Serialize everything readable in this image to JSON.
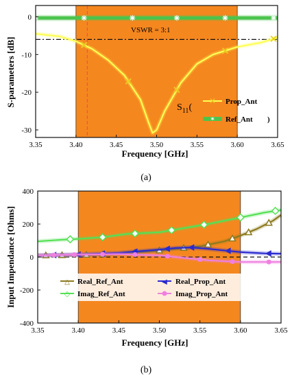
{
  "chart_data": [
    {
      "type": "line",
      "panel_label": "(a)",
      "xlabel": "Frequency [GHz]",
      "ylabel": "S-parameters [dB]",
      "xlim": [
        3.35,
        3.65
      ],
      "ylim": [
        -32,
        3
      ],
      "x_ticks": [
        "3.35",
        "3.40",
        "3.45",
        "3.50",
        "3.55",
        "3.60",
        "3.65"
      ],
      "y_ticks": [
        "0",
        "-10",
        "-20",
        "-30"
      ],
      "y_tick_values": [
        0,
        -10,
        -20,
        -30
      ],
      "shaded_band": {
        "x": [
          3.4,
          3.6
        ],
        "color": "#f5871f"
      },
      "reference_line": {
        "y": -6,
        "label": "VSWR = 3:1",
        "style": "dash-dot"
      },
      "marker_line": {
        "x": 3.414,
        "style": "dashed",
        "color": "#e05050"
      },
      "legend": {
        "prefix": "S",
        "prefix_sub": "11",
        "open": "(",
        "close": ")",
        "placement": "center-right"
      },
      "series": [
        {
          "name": "Prop_Ant",
          "color": "#ffff55",
          "marker": "x",
          "x": [
            3.35,
            3.38,
            3.4,
            3.42,
            3.44,
            3.46,
            3.48,
            3.49,
            3.495,
            3.5,
            3.51,
            3.53,
            3.55,
            3.57,
            3.6,
            3.63,
            3.65
          ],
          "y": [
            -4.5,
            -5.2,
            -6.5,
            -8.5,
            -11.5,
            -15.5,
            -22,
            -28,
            -30.8,
            -30,
            -25,
            -17.5,
            -12.5,
            -10,
            -8,
            -6.8,
            -5.5
          ],
          "marker_x": [
            3.41,
            3.465,
            3.525,
            3.585,
            3.645
          ]
        },
        {
          "name": "Ref_Ant",
          "color": "#4cc44c",
          "marker": "star",
          "x": [
            3.35,
            3.4,
            3.45,
            3.5,
            3.55,
            3.6,
            3.65
          ],
          "y": [
            -0.3,
            -0.3,
            -0.3,
            -0.3,
            -0.3,
            -0.3,
            -0.3
          ],
          "marker_x": [
            3.35,
            3.41,
            3.47,
            3.525,
            3.585,
            3.645
          ]
        }
      ]
    },
    {
      "type": "line",
      "panel_label": "(b)",
      "xlabel": "Frequency [GHz]",
      "ylabel": "Input Impendance [Ohms]",
      "xlim": [
        3.35,
        3.65
      ],
      "ylim": [
        -400,
        400
      ],
      "x_ticks": [
        "3.35",
        "3.40",
        "3.45",
        "3.50",
        "3.55",
        "3.60",
        "3.65"
      ],
      "y_ticks": [
        "400",
        "200",
        "0",
        "-200",
        "-400"
      ],
      "y_tick_values": [
        400,
        200,
        0,
        -200,
        -400
      ],
      "shaded_band": {
        "x": [
          3.4,
          3.6
        ],
        "color": "#f5871f"
      },
      "reference_line": {
        "y": 0,
        "style": "dashed"
      },
      "series": [
        {
          "name": "Real_Ref_Ant",
          "color": "#8c7a1e",
          "marker": "triangle",
          "x": [
            3.35,
            3.4,
            3.45,
            3.5,
            3.55,
            3.58,
            3.6,
            3.62,
            3.64,
            3.65
          ],
          "y": [
            10,
            12,
            20,
            40,
            65,
            95,
            130,
            170,
            220,
            255
          ],
          "marker_x": [
            3.36,
            3.38,
            3.41,
            3.43,
            3.47,
            3.5,
            3.53,
            3.56,
            3.59,
            3.61,
            3.635
          ]
        },
        {
          "name": "Imag_Ref_Ant",
          "color": "#55e055",
          "marker": "diamond",
          "x": [
            3.35,
            3.38,
            3.4,
            3.43,
            3.46,
            3.5,
            3.53,
            3.56,
            3.6,
            3.63,
            3.65
          ],
          "y": [
            95,
            105,
            110,
            120,
            140,
            150,
            175,
            200,
            240,
            270,
            285
          ],
          "marker_x": [
            3.39,
            3.43,
            3.47,
            3.515,
            3.555,
            3.6,
            3.643
          ]
        },
        {
          "name": "Real_Prop_Ant",
          "color": "#2a2ad0",
          "marker": "left-arrow",
          "x": [
            3.35,
            3.4,
            3.45,
            3.5,
            3.52,
            3.54,
            3.56,
            3.6,
            3.63,
            3.65
          ],
          "y": [
            10,
            15,
            25,
            45,
            55,
            58,
            50,
            30,
            22,
            20
          ],
          "marker_x": [
            3.37,
            3.4,
            3.43,
            3.47,
            3.51,
            3.54,
            3.585,
            3.635
          ]
        },
        {
          "name": "Imag_Prop_Ant",
          "color": "#f080e0",
          "marker": "circle",
          "x": [
            3.35,
            3.4,
            3.45,
            3.5,
            3.53,
            3.56,
            3.6,
            3.65
          ],
          "y": [
            10,
            15,
            18,
            10,
            -5,
            -20,
            -30,
            -30
          ],
          "marker_x": [
            3.37,
            3.395,
            3.43,
            3.47,
            3.51,
            3.55,
            3.59,
            3.635
          ]
        }
      ],
      "legend": {
        "placement": "bottom-center"
      }
    }
  ]
}
